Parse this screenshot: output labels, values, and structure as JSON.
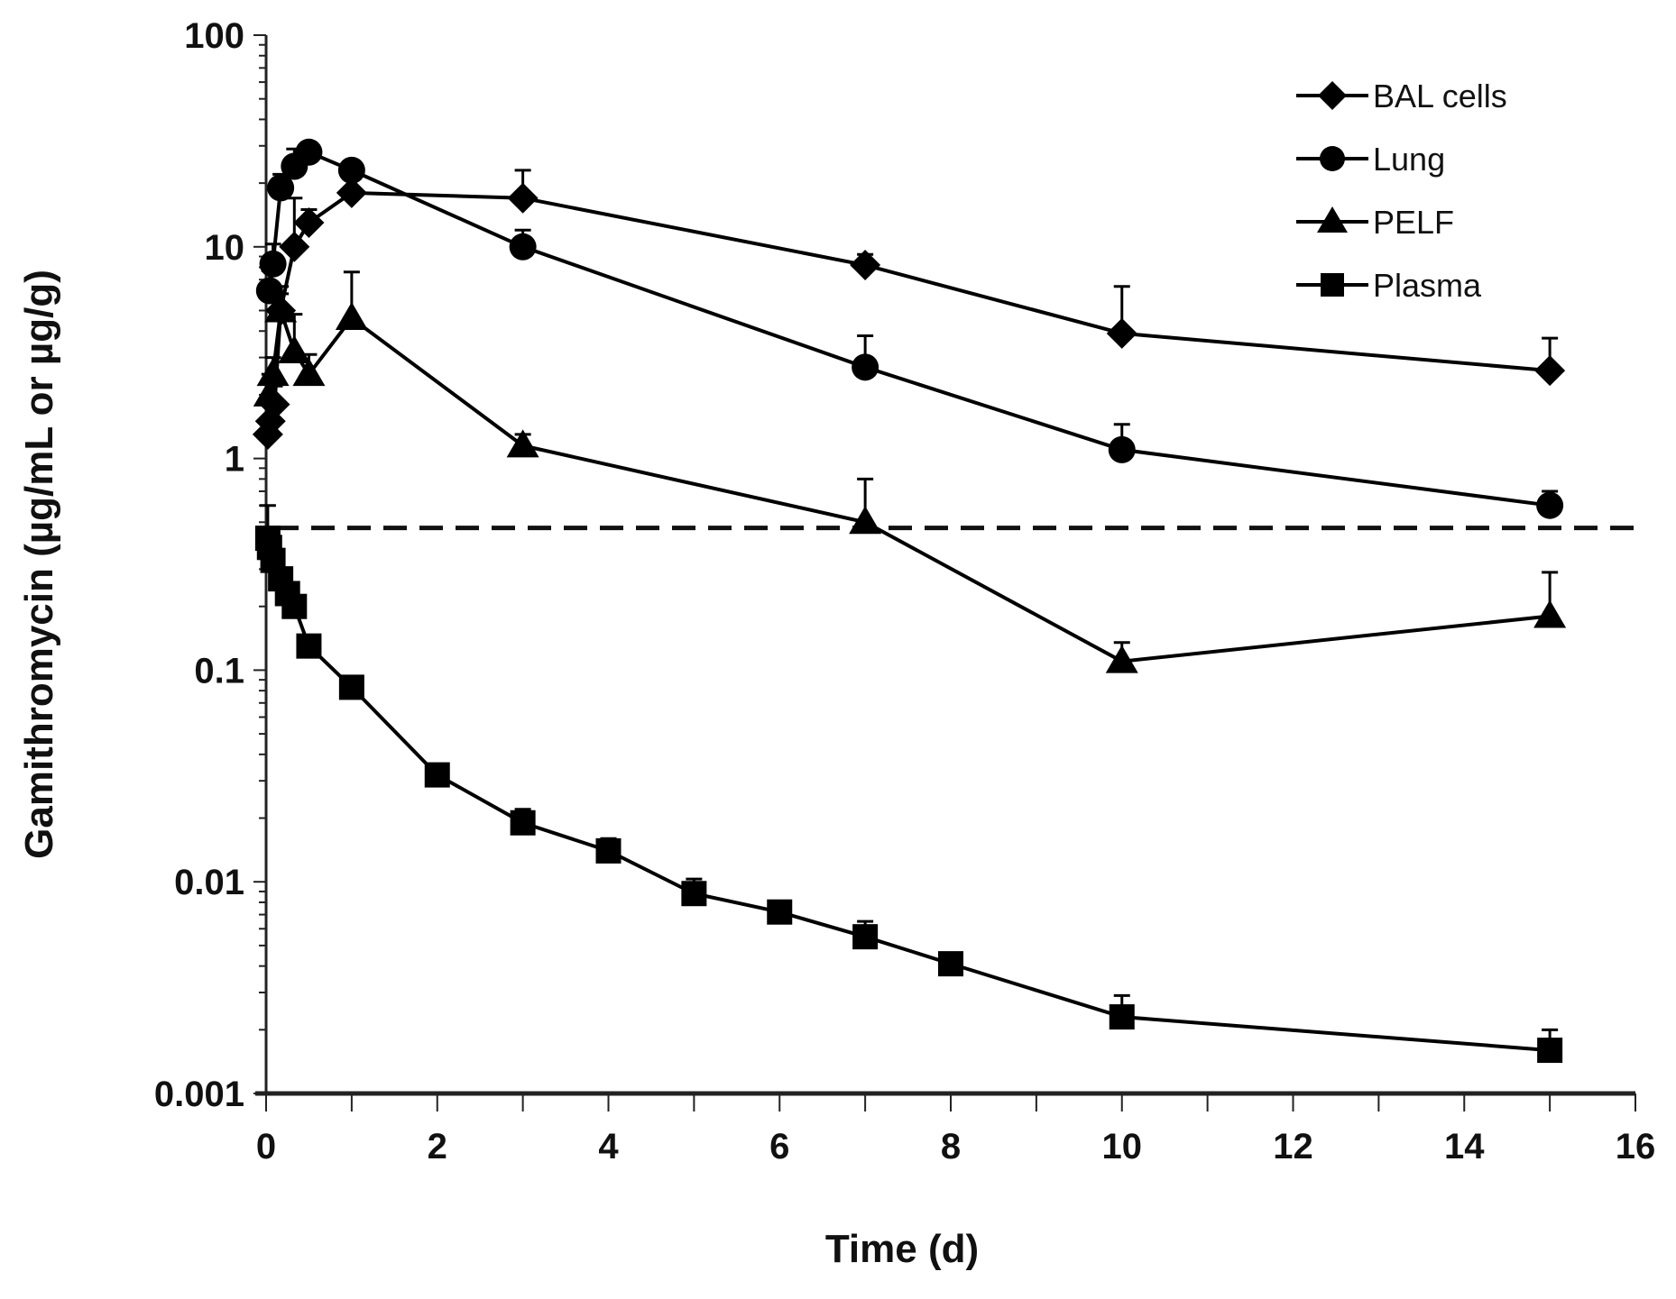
{
  "chart_data": {
    "type": "line",
    "title": "",
    "xlabel": "Time (d)",
    "ylabel": "Gamithromycin (µg/mL or µg/g)",
    "xlim": [
      0,
      16
    ],
    "ylim": [
      0.001,
      100
    ],
    "yscale": "log",
    "xticks": [
      0,
      2,
      4,
      6,
      8,
      10,
      12,
      14,
      16
    ],
    "xtick_labels": [
      "0",
      "2",
      "4",
      "6",
      "8",
      "10",
      "12",
      "14",
      "16"
    ],
    "yticks": [
      0.001,
      0.01,
      0.1,
      1,
      10,
      100
    ],
    "ytick_labels": [
      "0.001",
      "0.01",
      "0.1",
      "1",
      "10",
      "100"
    ],
    "grid": false,
    "legend_position": "top-right",
    "reference_line": {
      "y": 0.47,
      "style": "dashed"
    },
    "series": [
      {
        "name": "BAL cells",
        "marker": "diamond",
        "x": [
          0.02,
          0.05,
          0.1,
          0.17,
          0.33,
          0.5,
          1,
          3,
          7,
          10,
          15
        ],
        "y": [
          1.3,
          1.5,
          1.8,
          5.0,
          10,
          13,
          18,
          17,
          8.2,
          3.9,
          2.6
        ],
        "err": [
          0.2,
          0.3,
          0.4,
          1.5,
          7,
          2,
          3,
          6,
          1,
          2.6,
          1.1
        ]
      },
      {
        "name": "Lung",
        "marker": "circle",
        "x": [
          0.04,
          0.08,
          0.17,
          0.33,
          0.5,
          1,
          3,
          7,
          10,
          15
        ],
        "y": [
          6.2,
          8.3,
          19,
          24,
          28,
          23,
          10,
          2.7,
          1.1,
          0.6
        ],
        "err": [
          1.5,
          2,
          3,
          5,
          3,
          2,
          2,
          1.1,
          0.35,
          0.1
        ]
      },
      {
        "name": "PELF",
        "marker": "triangle",
        "x": [
          0.04,
          0.08,
          0.17,
          0.33,
          0.5,
          1,
          3,
          7,
          10,
          15
        ],
        "y": [
          2.0,
          2.5,
          5.0,
          3.2,
          2.5,
          4.6,
          1.15,
          0.5,
          0.11,
          0.18
        ],
        "err": [
          0.5,
          0.5,
          1,
          1.6,
          0.6,
          3,
          0.15,
          0.3,
          0.025,
          0.11
        ]
      },
      {
        "name": "Plasma",
        "marker": "square",
        "x": [
          0.02,
          0.04,
          0.08,
          0.17,
          0.25,
          0.33,
          0.5,
          1,
          2,
          3,
          4,
          5,
          6,
          7,
          8,
          10,
          15
        ],
        "y": [
          0.42,
          0.38,
          0.33,
          0.27,
          0.23,
          0.2,
          0.13,
          0.083,
          0.032,
          0.019,
          0.014,
          0.0088,
          0.0072,
          0.0055,
          0.0041,
          0.0023,
          0.0016
        ],
        "err": [
          0.18,
          0.05,
          0.04,
          0.03,
          0.03,
          0.02,
          0.01,
          0.008,
          0.003,
          0.003,
          0.002,
          0.0015,
          0.0005,
          0.001,
          0.0003,
          0.0006,
          0.0004
        ]
      }
    ]
  }
}
